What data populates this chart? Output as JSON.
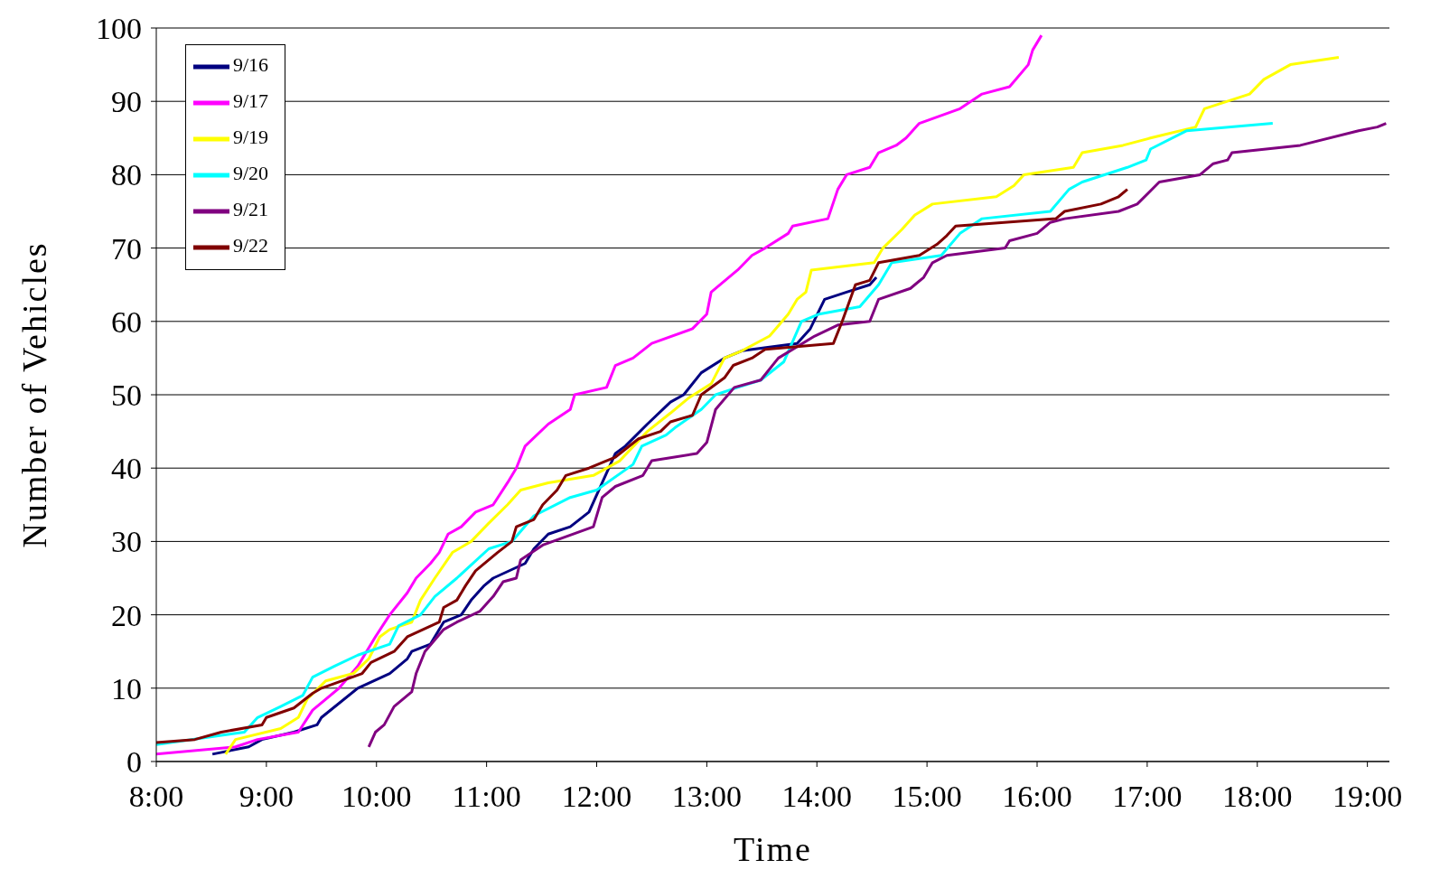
{
  "chart_data": {
    "type": "line",
    "xlabel": "Time",
    "ylabel": "Number of Vehicles",
    "xlim": [
      8,
      19.2
    ],
    "ylim": [
      0,
      100
    ],
    "xticks": [
      {
        "value": 8,
        "label": "8:00"
      },
      {
        "value": 9,
        "label": "9:00"
      },
      {
        "value": 10,
        "label": "10:00"
      },
      {
        "value": 11,
        "label": "11:00"
      },
      {
        "value": 12,
        "label": "12:00"
      },
      {
        "value": 13,
        "label": "13:00"
      },
      {
        "value": 14,
        "label": "14:00"
      },
      {
        "value": 15,
        "label": "15:00"
      },
      {
        "value": 16,
        "label": "16:00"
      },
      {
        "value": 17,
        "label": "17:00"
      },
      {
        "value": 18,
        "label": "18:00"
      },
      {
        "value": 19,
        "label": "19:00"
      }
    ],
    "yticks": [
      0,
      10,
      20,
      30,
      40,
      50,
      60,
      70,
      80,
      90,
      100
    ],
    "grid": "y",
    "legend": "top left",
    "marker": "none",
    "line_style": "solid",
    "series": [
      {
        "name": "9/16",
        "color": "#000080",
        "x": [
          8.51,
          8.84,
          8.96,
          9.25,
          9.46,
          9.5,
          9.83,
          10.12,
          10.28,
          10.32,
          10.49,
          10.61,
          10.77,
          10.86,
          10.98,
          11.06,
          11.35,
          11.43,
          11.56,
          11.76,
          11.93,
          12.05,
          12.17,
          12.26,
          12.46,
          12.67,
          12.79,
          12.95,
          13.16,
          13.32,
          13.82,
          13.94,
          14.07,
          14.27,
          14.48,
          14.54
        ],
        "values": [
          1,
          2,
          3,
          4,
          5,
          6,
          10,
          12,
          14,
          15,
          16,
          19,
          20,
          22,
          24,
          25,
          27,
          29,
          31,
          32,
          34,
          38,
          42,
          43,
          46,
          49,
          50,
          53,
          55,
          56,
          57,
          59,
          63,
          64,
          65,
          66
        ]
      },
      {
        "name": "9/17",
        "color": "#ff00ff",
        "x": [
          8,
          8.72,
          8.92,
          9.29,
          9.42,
          9.66,
          9.83,
          9.99,
          10.12,
          10.28,
          10.36,
          10.49,
          10.57,
          10.65,
          10.77,
          10.9,
          11.06,
          11.19,
          11.27,
          11.35,
          11.56,
          11.76,
          11.8,
          12.09,
          12.17,
          12.33,
          12.5,
          12.87,
          13,
          13.04,
          13.28,
          13.41,
          13.53,
          13.74,
          13.78,
          14.1,
          14.19,
          14.27,
          14.48,
          14.56,
          14.72,
          14.81,
          14.93,
          15.3,
          15.5,
          15.75,
          15.92,
          15.96,
          16.04
        ],
        "values": [
          1,
          2,
          3,
          4,
          7,
          10,
          13,
          17,
          20,
          23,
          25,
          27,
          28.5,
          31,
          32,
          34,
          35,
          38,
          40,
          43,
          46,
          48,
          50,
          51,
          54,
          55,
          57,
          59,
          61,
          64,
          67,
          69,
          70,
          72,
          73,
          74,
          78,
          80,
          81,
          83,
          84,
          85,
          87,
          89,
          91,
          92,
          95,
          97,
          99
        ]
      },
      {
        "name": "9/19",
        "color": "#ffff00",
        "x": [
          8.63,
          8.72,
          9.13,
          9.29,
          9.37,
          9.54,
          9.79,
          9.93,
          10.03,
          10.12,
          10.32,
          10.4,
          10.53,
          10.69,
          10.86,
          11.02,
          11.19,
          11.31,
          11.56,
          11.97,
          12.21,
          12.46,
          12.67,
          12.83,
          13.04,
          13.16,
          13.32,
          13.57,
          13.74,
          13.82,
          13.9,
          13.95,
          14.52,
          14.6,
          14.77,
          14.89,
          15.05,
          15.63,
          15.79,
          15.88,
          16.33,
          16.41,
          16.78,
          17.03,
          17.44,
          17.52,
          17.93,
          18.06,
          18.3,
          18.74
        ],
        "values": [
          1,
          3,
          4.5,
          6,
          8.5,
          11,
          12,
          14,
          17,
          18,
          19,
          22,
          25,
          28.5,
          30,
          32.5,
          35,
          37,
          38,
          39,
          41,
          45,
          47.5,
          49.5,
          51.5,
          55,
          56,
          58,
          61,
          63,
          64,
          67,
          68,
          70,
          72.5,
          74.5,
          76,
          77,
          78.5,
          80,
          81,
          83,
          84,
          85,
          86.5,
          89,
          91,
          93,
          95,
          96
        ]
      },
      {
        "name": "9/20",
        "color": "#00ffff",
        "x": [
          8,
          8.8,
          8.92,
          9.13,
          9.33,
          9.42,
          9.62,
          9.83,
          10.12,
          10.2,
          10.4,
          10.53,
          10.73,
          11.02,
          11.23,
          11.43,
          11.76,
          12,
          12.33,
          12.41,
          12.63,
          12.71,
          12.95,
          13.08,
          13.28,
          13.49,
          13.7,
          13.86,
          14.02,
          14.39,
          14.56,
          14.68,
          15.13,
          15.3,
          15.5,
          16.12,
          16.29,
          16.41,
          16.82,
          16.99,
          17.03,
          17.36,
          18.14
        ],
        "values": [
          2.3,
          4,
          6,
          7.5,
          9,
          11.5,
          13,
          14.5,
          16,
          18.5,
          20,
          22.5,
          25,
          29,
          30,
          33.5,
          36,
          37,
          40.5,
          43,
          44.5,
          45.5,
          48,
          50,
          51,
          52,
          54.5,
          60,
          61,
          62,
          65,
          68,
          69,
          72,
          74,
          75,
          78,
          79,
          81,
          82,
          83.5,
          86,
          87
        ]
      },
      {
        "name": "9/21",
        "color": "#800080",
        "x": [
          9.93,
          9.99,
          10.07,
          10.16,
          10.32,
          10.36,
          10.44,
          10.61,
          10.73,
          10.94,
          11.06,
          11.15,
          11.27,
          11.31,
          11.51,
          11.97,
          12.05,
          12.17,
          12.42,
          12.5,
          12.91,
          13,
          13.08,
          13.25,
          13.49,
          13.65,
          13.98,
          14.19,
          14.48,
          14.56,
          14.85,
          14.97,
          15.05,
          15.18,
          15.71,
          15.75,
          16,
          16.12,
          16.25,
          16.74,
          16.91,
          17.11,
          17.48,
          17.6,
          17.73,
          17.77,
          18.39,
          18.92,
          19.09,
          19.17
        ],
        "values": [
          2,
          4,
          5,
          7.5,
          9.5,
          12,
          15,
          18,
          19,
          20.5,
          22.5,
          24.5,
          25,
          27.5,
          29.5,
          32,
          36,
          37.5,
          39,
          41,
          42,
          43.5,
          48,
          51,
          52,
          55,
          58,
          59.5,
          60,
          63,
          64.5,
          66,
          68,
          69,
          70,
          71,
          72,
          73.5,
          74,
          75,
          76,
          79,
          80,
          81.5,
          82,
          83,
          84,
          86,
          86.5,
          87
        ]
      },
      {
        "name": "9/22",
        "color": "#800000",
        "x": [
          8,
          8.35,
          8.59,
          8.96,
          9,
          9.25,
          9.42,
          9.5,
          9.87,
          9.95,
          10.16,
          10.28,
          10.57,
          10.61,
          10.73,
          10.81,
          10.9,
          11.1,
          11.23,
          11.27,
          11.43,
          11.51,
          11.64,
          11.72,
          11.93,
          12.17,
          12.38,
          12.58,
          12.67,
          12.87,
          12.95,
          13.16,
          13.24,
          13.41,
          13.53,
          14.15,
          14.23,
          14.35,
          14.48,
          14.56,
          14.93,
          15.09,
          15.18,
          15.26,
          16.17,
          16.25,
          16.58,
          16.74,
          16.82
        ],
        "values": [
          2.6,
          3,
          4,
          5,
          6,
          7.3,
          9.3,
          10,
          12,
          13.5,
          15,
          17,
          19,
          21,
          22,
          24,
          26,
          28.5,
          30,
          32,
          33,
          35,
          37,
          39,
          40,
          41.5,
          44,
          45,
          46.3,
          47.2,
          50,
          52.3,
          54,
          55,
          56.2,
          57,
          60,
          65,
          65.6,
          68,
          69,
          70.5,
          71.7,
          73,
          74,
          75,
          76,
          77,
          78
        ]
      }
    ]
  }
}
